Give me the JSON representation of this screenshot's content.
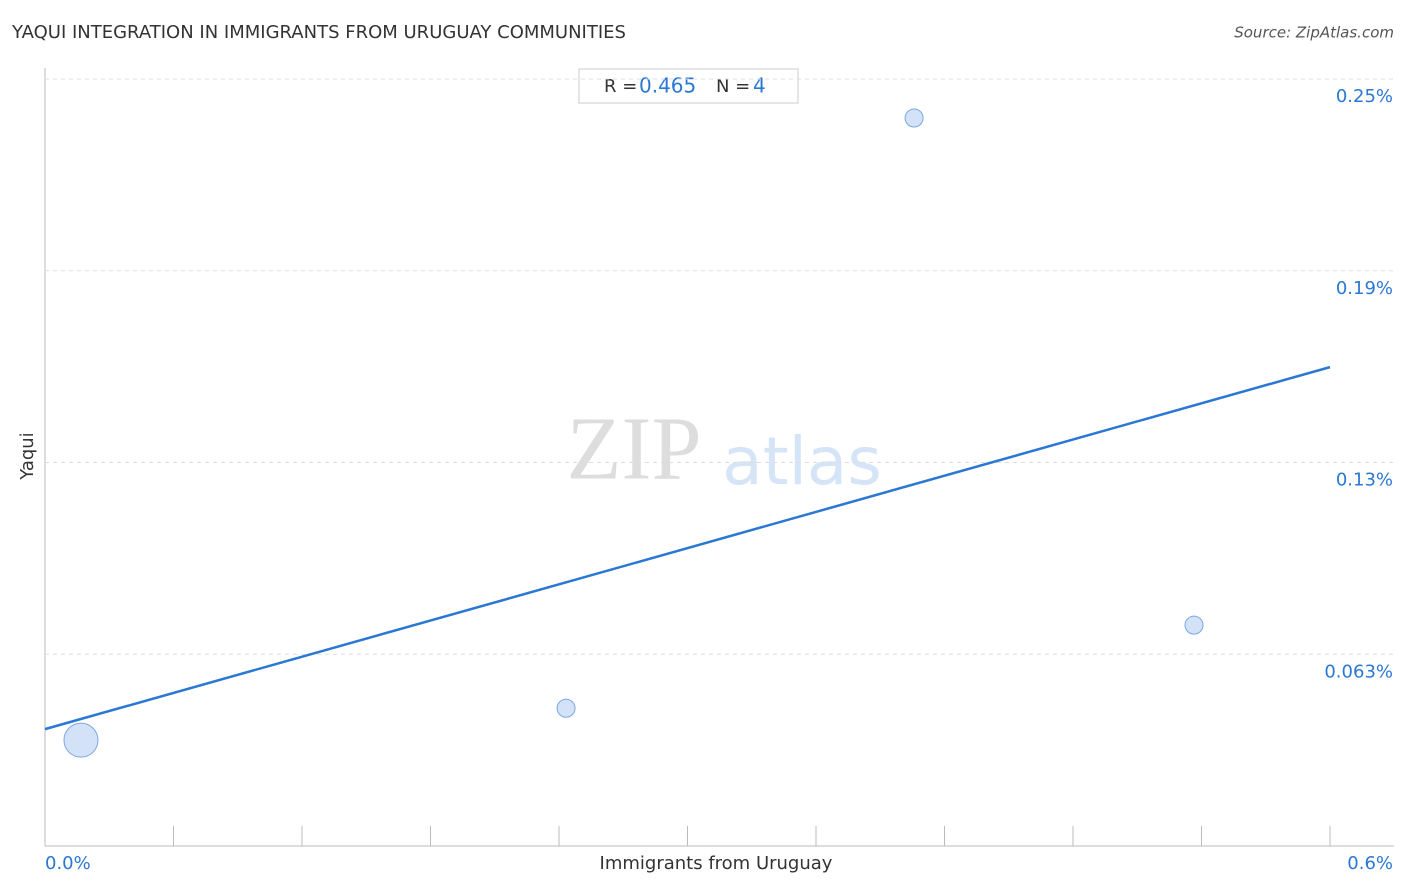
{
  "chart_data": {
    "type": "scatter",
    "title": "YAQUI INTEGRATION IN IMMIGRANTS FROM URUGUAY COMMUNITIES",
    "source": "Source: ZipAtlas.com",
    "x_label": "Immigrants from Uruguay",
    "y_label": "Yaqui",
    "watermark": [
      "ZIP",
      "atlas"
    ],
    "stats": {
      "r_label": "R =",
      "r": 0.465,
      "n_label": "N =",
      "n": 4
    },
    "x": [
      0.0168,
      0.2433,
      0.4058,
      0.5365
    ],
    "values": [
      0.0345,
      0.0449,
      0.2373,
      0.072
    ],
    "sizes": [
      17,
      9,
      9,
      9
    ],
    "color": "#a9c6f0",
    "trend": {
      "color": "#2b77d4",
      "x": [
        0,
        0.6
      ],
      "values": [
        0.0381,
        0.1561
      ]
    },
    "xlim": [
      0,
      0.6
    ],
    "ylim": [
      0,
      0.2536
    ],
    "xticks": [
      {
        "value": 0,
        "label": "0.0%"
      },
      {
        "value": 0.06,
        "label": null
      },
      {
        "value": 0.12,
        "label": null
      },
      {
        "value": 0.18,
        "label": null
      },
      {
        "value": 0.24,
        "label": null
      },
      {
        "value": 0.3,
        "label": null
      },
      {
        "value": 0.36,
        "label": null
      },
      {
        "value": 0.42,
        "label": null
      },
      {
        "value": 0.48,
        "label": null
      },
      {
        "value": 0.54,
        "label": null
      },
      {
        "value": 0.6,
        "label": "0.6%"
      }
    ],
    "yticks": [
      {
        "value": 0.0625,
        "label": "0.063%"
      },
      {
        "value": 0.125,
        "label": "0.13%"
      },
      {
        "value": 0.1875,
        "label": "0.19%"
      },
      {
        "value": 0.25,
        "label": "0.25%"
      }
    ],
    "grid": true
  }
}
